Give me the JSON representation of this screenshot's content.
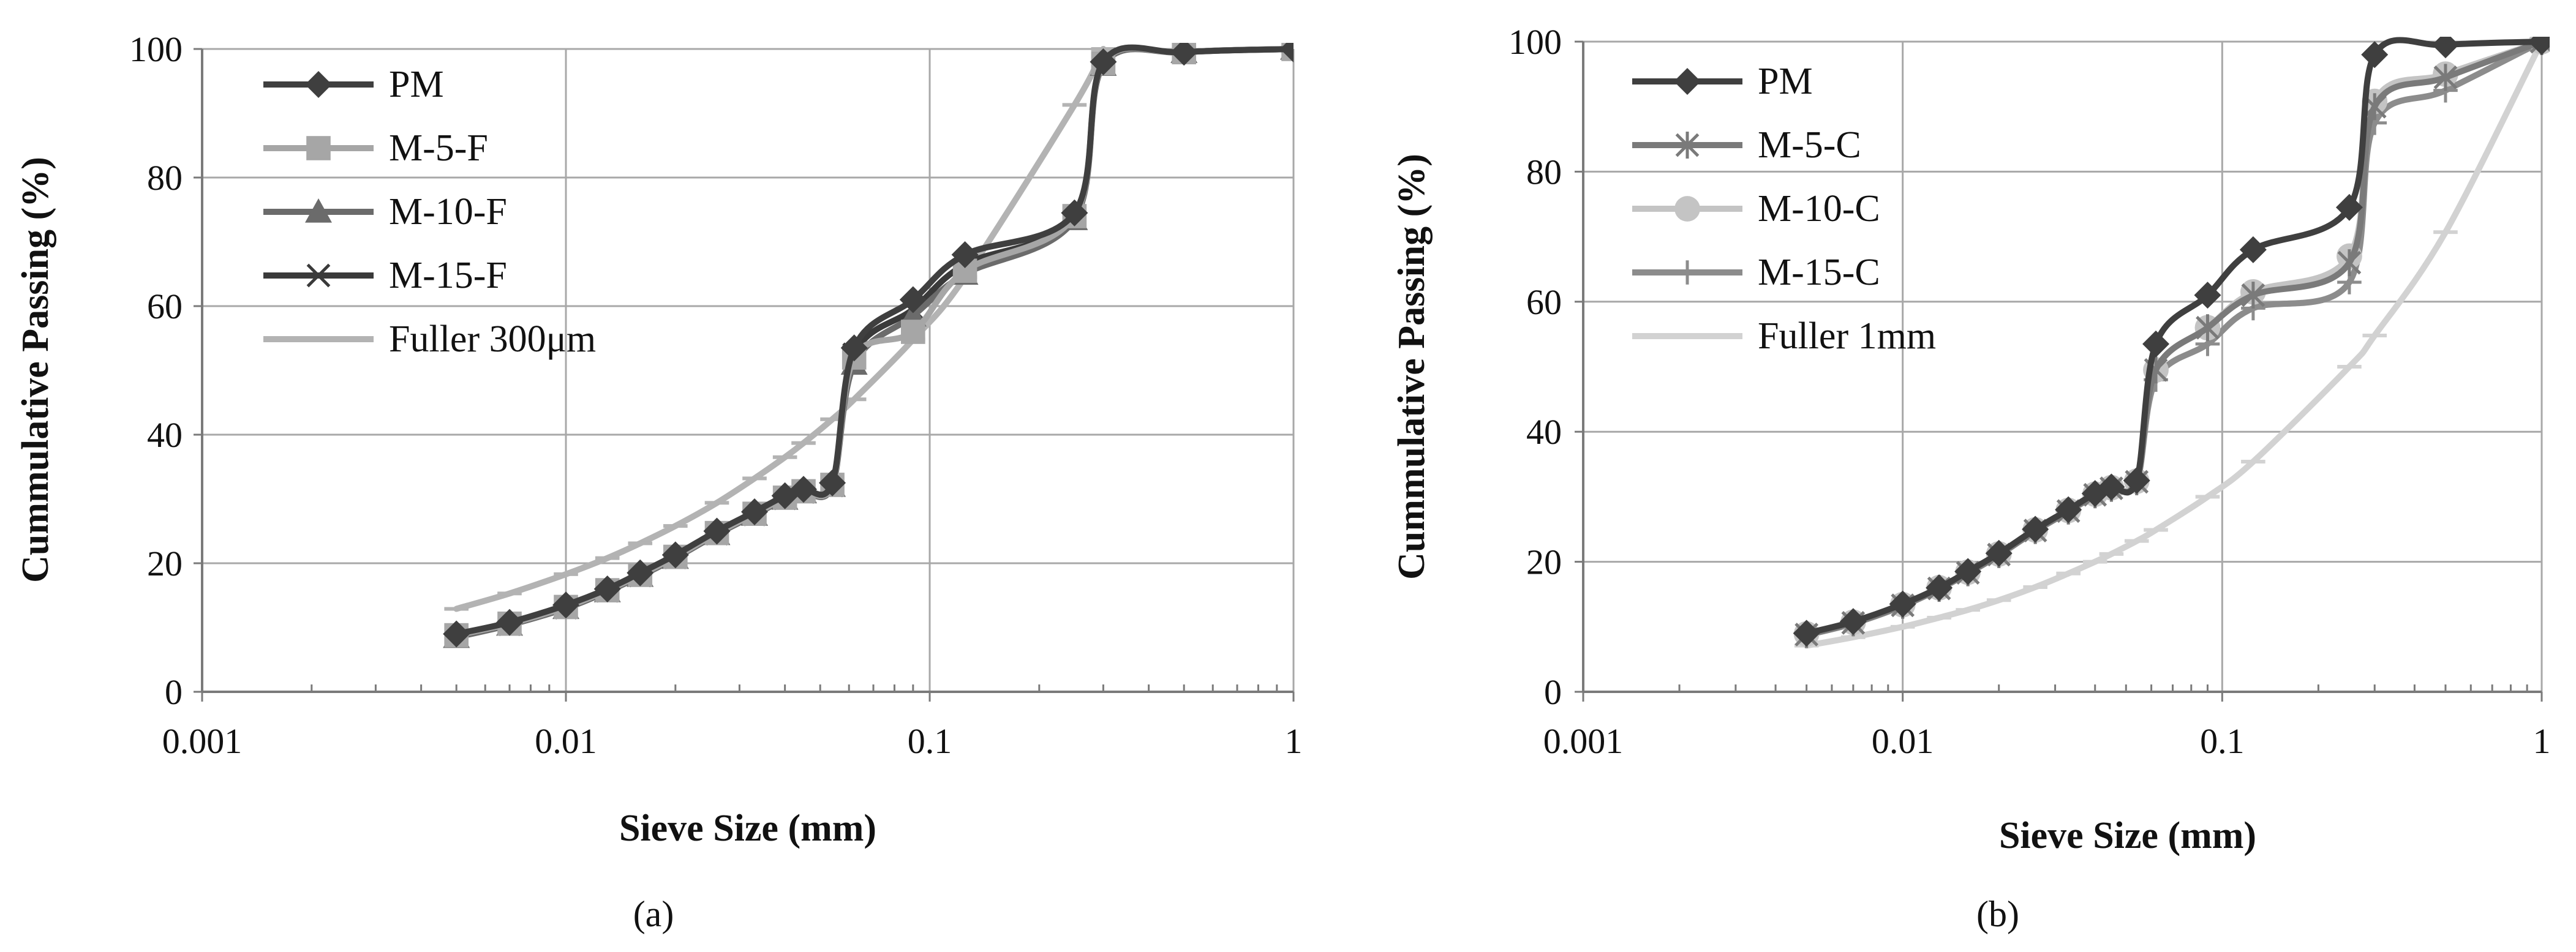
{
  "colors": {
    "PM": "#3f3f3f",
    "M-5-F": "#a6a6a6",
    "M-10-F": "#6b6b6b",
    "M-15-F": "#3a3a3a",
    "Fuller 300μm": "#b3b3b3",
    "M-5-C": "#7a7a7a",
    "M-10-C": "#c4c4c4",
    "M-15-C": "#8c8c8c",
    "Fuller 1mm": "#d2d2d2",
    "grid": "#a8a8a8",
    "axis": "#7a7a7a"
  },
  "chart_data": [
    {
      "type": "line",
      "panel_label": "(a)",
      "xscale": "log",
      "xlim": [
        0.001,
        1
      ],
      "ylim": [
        0,
        100
      ],
      "xticks": [
        0.001,
        0.01,
        0.1,
        1
      ],
      "xtick_labels": [
        "0.001",
        "0.01",
        "0.1",
        "1"
      ],
      "yticks": [
        0,
        20,
        40,
        60,
        80,
        100
      ],
      "ytick_labels": [
        "0",
        "20",
        "40",
        "60",
        "80",
        "100"
      ],
      "xlabel": "Sieve Size (mm)",
      "ylabel": "Cummulative Passing (%)",
      "grid": true,
      "legend_position": "top-left",
      "series": [
        {
          "name": "PM",
          "marker": "diamond",
          "curve": true,
          "x": [
            0.005,
            0.007,
            0.01,
            0.013,
            0.016,
            0.02,
            0.026,
            0.033,
            0.04,
            0.045,
            0.054,
            0.062,
            0.09,
            0.125,
            0.25,
            0.3,
            0.5,
            1
          ],
          "y": [
            9,
            10.8,
            13.5,
            16,
            18.5,
            21.3,
            25,
            28,
            30.5,
            31.5,
            32.5,
            53.5,
            61,
            68,
            74.5,
            98,
            99.5,
            100
          ]
        },
        {
          "name": "M-5-F",
          "marker": "square",
          "curve": true,
          "x": [
            0.005,
            0.007,
            0.01,
            0.013,
            0.016,
            0.02,
            0.026,
            0.033,
            0.04,
            0.045,
            0.054,
            0.062,
            0.09,
            0.125,
            0.25,
            0.3,
            0.5,
            1
          ],
          "y": [
            8.8,
            10.6,
            13.2,
            15.8,
            18.2,
            21,
            24.7,
            27.7,
            30.2,
            31.2,
            32.2,
            52,
            56,
            65.5,
            74,
            97.8,
            99.5,
            100
          ]
        },
        {
          "name": "M-10-F",
          "marker": "triangle",
          "curve": true,
          "x": [
            0.005,
            0.007,
            0.01,
            0.013,
            0.016,
            0.02,
            0.026,
            0.033,
            0.04,
            0.045,
            0.054,
            0.062,
            0.09,
            0.125,
            0.25,
            0.3,
            0.5,
            1
          ],
          "y": [
            8.5,
            10.4,
            13,
            15.6,
            18,
            20.8,
            24.5,
            27.5,
            30,
            31,
            32,
            51,
            58.5,
            65,
            73.5,
            97.5,
            99.5,
            100
          ]
        },
        {
          "name": "M-15-F",
          "marker": "x",
          "curve": true,
          "x": [
            0.005,
            0.007,
            0.01,
            0.013,
            0.016,
            0.02,
            0.026,
            0.033,
            0.04,
            0.045,
            0.054,
            0.062,
            0.09,
            0.125,
            0.25,
            0.3,
            0.5,
            1
          ],
          "y": [
            8.7,
            10.5,
            13.1,
            15.7,
            18.1,
            20.9,
            24.6,
            27.6,
            30.1,
            31.1,
            32.1,
            52.5,
            59.5,
            66.5,
            74,
            97.8,
            99.5,
            100
          ]
        },
        {
          "name": "Fuller 300μm",
          "marker": "dash",
          "curve": true,
          "x": [
            0.005,
            0.007,
            0.01,
            0.013,
            0.016,
            0.02,
            0.026,
            0.033,
            0.04,
            0.045,
            0.054,
            0.062,
            0.09,
            0.125,
            0.25,
            0.3
          ],
          "y": [
            12.9,
            15.3,
            18.3,
            20.8,
            23.1,
            25.8,
            29.4,
            33.2,
            36.5,
            38.7,
            42.4,
            45.5,
            54.8,
            64.5,
            91.3,
            100
          ]
        }
      ]
    },
    {
      "type": "line",
      "panel_label": "(b)",
      "xscale": "log",
      "xlim": [
        0.001,
        1
      ],
      "ylim": [
        0,
        100
      ],
      "xticks": [
        0.001,
        0.01,
        0.1,
        1
      ],
      "xtick_labels": [
        "0.001",
        "0.01",
        "0.1",
        "1"
      ],
      "yticks": [
        0,
        20,
        40,
        60,
        80,
        100
      ],
      "ytick_labels": [
        "0",
        "20",
        "40",
        "60",
        "80",
        "100"
      ],
      "xlabel": "Sieve Size (mm)",
      "ylabel": "Cummulative Passing (%)",
      "grid": true,
      "legend_position": "top-left",
      "series": [
        {
          "name": "PM",
          "marker": "diamond",
          "curve": true,
          "x": [
            0.005,
            0.007,
            0.01,
            0.013,
            0.016,
            0.02,
            0.026,
            0.033,
            0.04,
            0.045,
            0.054,
            0.062,
            0.09,
            0.125,
            0.25,
            0.3,
            0.5,
            1
          ],
          "y": [
            9,
            10.8,
            13.5,
            16,
            18.5,
            21.3,
            25,
            28,
            30.5,
            31.5,
            32.5,
            53.5,
            61,
            68,
            74.5,
            98,
            99.5,
            100
          ]
        },
        {
          "name": "M-5-C",
          "marker": "asterisk",
          "curve": true,
          "x": [
            0.005,
            0.007,
            0.01,
            0.013,
            0.016,
            0.02,
            0.026,
            0.033,
            0.04,
            0.045,
            0.054,
            0.062,
            0.09,
            0.125,
            0.25,
            0.3,
            0.5,
            1
          ],
          "y": [
            8.8,
            10.6,
            13.3,
            15.9,
            18.3,
            21.1,
            24.8,
            27.8,
            30.3,
            31.3,
            32.3,
            49.5,
            56,
            61,
            66,
            90,
            94.5,
            100
          ]
        },
        {
          "name": "M-10-C",
          "marker": "circle",
          "curve": true,
          "x": [
            0.005,
            0.007,
            0.01,
            0.013,
            0.016,
            0.02,
            0.026,
            0.033,
            0.04,
            0.045,
            0.054,
            0.062,
            0.09,
            0.125,
            0.25,
            0.3,
            0.5,
            1
          ],
          "y": [
            8.9,
            10.7,
            13.4,
            16,
            18.4,
            21.2,
            24.9,
            27.9,
            30.4,
            31.4,
            32.4,
            49.5,
            56,
            61.5,
            67,
            90.8,
            95,
            100
          ]
        },
        {
          "name": "M-15-C",
          "marker": "plus",
          "curve": true,
          "x": [
            0.005,
            0.007,
            0.01,
            0.013,
            0.016,
            0.02,
            0.026,
            0.033,
            0.04,
            0.045,
            0.054,
            0.062,
            0.09,
            0.125,
            0.25,
            0.3,
            0.5,
            1
          ],
          "y": [
            8.7,
            10.5,
            13.2,
            15.8,
            18.2,
            21,
            24.7,
            27.7,
            30.2,
            31.2,
            32.2,
            48,
            53.5,
            59,
            63,
            87.5,
            92.5,
            100
          ]
        },
        {
          "name": "Fuller 1mm",
          "marker": "dash",
          "curve": true,
          "x": [
            0.005,
            0.007,
            0.01,
            0.013,
            0.016,
            0.02,
            0.026,
            0.033,
            0.04,
            0.045,
            0.054,
            0.062,
            0.09,
            0.125,
            0.25,
            0.3,
            0.5,
            1
          ],
          "y": [
            7.1,
            8.4,
            10,
            11.4,
            12.6,
            14.1,
            16.1,
            18.2,
            20,
            21.2,
            23.2,
            24.9,
            30,
            35.4,
            50,
            54.8,
            70.7,
            100
          ]
        }
      ]
    }
  ]
}
